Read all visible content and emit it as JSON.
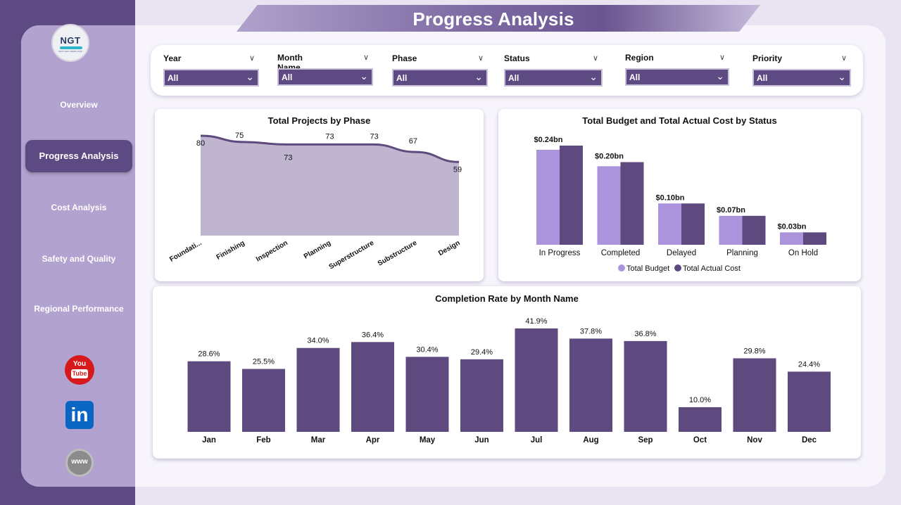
{
  "page_title": "Progress Analysis",
  "logo": {
    "text": "NGT",
    "subtext": "NEXT GEN TEMPLATES"
  },
  "nav": {
    "items": [
      {
        "label": "Overview",
        "active": false
      },
      {
        "label": "Progress Analysis",
        "active": true
      },
      {
        "label": "Cost Analysis",
        "active": false
      },
      {
        "label": "Safety and Quality",
        "active": false
      },
      {
        "label": "Regional Performance",
        "active": false
      }
    ]
  },
  "social": {
    "youtube_top": "You",
    "youtube_bottom": "Tube",
    "linkedin": "in",
    "web": "www"
  },
  "filters": [
    {
      "label": "Year",
      "value": "All"
    },
    {
      "label": "Month Name",
      "value": "All"
    },
    {
      "label": "Phase",
      "value": "All"
    },
    {
      "label": "Status",
      "value": "All"
    },
    {
      "label": "Region",
      "value": "All"
    },
    {
      "label": "Priority",
      "value": "All"
    }
  ],
  "colors": {
    "accent": "#5e4a82",
    "sidebar": "#b1a2cf",
    "area_fill": "#bfb5cf",
    "budget": "#ab94dc",
    "actual": "#5e4a7e"
  },
  "chart_data": [
    {
      "type": "area",
      "title": "Total Projects by Phase",
      "categories": [
        "Foundati...",
        "Finishing",
        "Inspection",
        "Planning",
        "Superstructure",
        "Substructure",
        "Design"
      ],
      "values": [
        80,
        75,
        73,
        73,
        73,
        67,
        59
      ],
      "data_labels": [
        "80",
        "75",
        "73",
        "73",
        "73",
        "67",
        "59"
      ]
    },
    {
      "type": "bar",
      "title": "Total Budget and Total Actual Cost by Status",
      "categories": [
        "In Progress",
        "Completed",
        "Delayed",
        "Planning",
        "On Hold"
      ],
      "series": [
        {
          "name": "Total Budget",
          "values": [
            0.23,
            0.19,
            0.1,
            0.07,
            0.03
          ]
        },
        {
          "name": "Total Actual Cost",
          "values": [
            0.24,
            0.2,
            0.1,
            0.07,
            0.03
          ]
        }
      ],
      "data_labels": [
        "$0.24bn",
        "$0.20bn",
        "$0.10bn",
        "$0.07bn",
        "$0.03bn"
      ],
      "legend": "bottom-center"
    },
    {
      "type": "bar",
      "title": "Completion Rate by Month Name",
      "categories": [
        "Jan",
        "Feb",
        "Mar",
        "Apr",
        "May",
        "Jun",
        "Jul",
        "Aug",
        "Sep",
        "Oct",
        "Nov",
        "Dec"
      ],
      "values": [
        28.6,
        25.5,
        34.0,
        36.4,
        30.4,
        29.4,
        41.9,
        37.8,
        36.8,
        10.0,
        29.8,
        24.4
      ],
      "data_labels": [
        "28.6%",
        "25.5%",
        "34.0%",
        "36.4%",
        "30.4%",
        "29.4%",
        "41.9%",
        "37.8%",
        "36.8%",
        "10.0%",
        "29.8%",
        "24.4%"
      ]
    }
  ]
}
